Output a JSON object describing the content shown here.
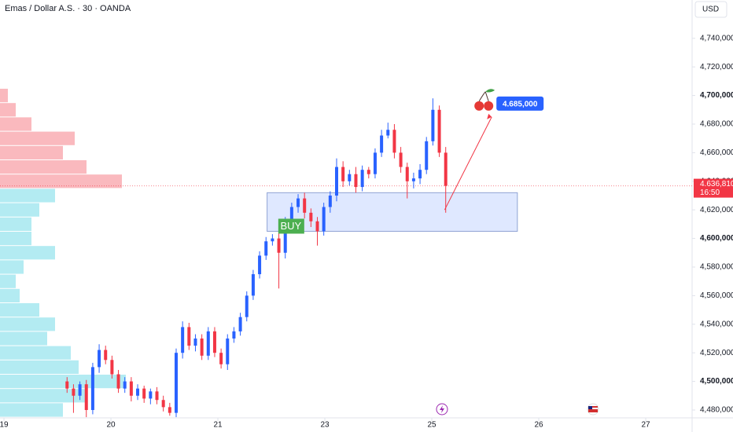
{
  "chart_data": {
    "type": "candlestick",
    "title": "Emas / Dollar A.S. · 30 · OANDA",
    "currency": "USD",
    "up_color": "#2962ff",
    "down_color": "#f23645",
    "xlim": [
      -0.037,
      6.36
    ],
    "ylim": [
      4474500,
      4766800
    ],
    "xticks": [
      {
        "value": 0,
        "label": "19"
      },
      {
        "value": 1,
        "label": "20"
      },
      {
        "value": 2,
        "label": "21"
      },
      {
        "value": 3,
        "label": "23"
      },
      {
        "value": 4,
        "label": "25"
      },
      {
        "value": 5,
        "label": "26"
      },
      {
        "value": 6,
        "label": "27"
      }
    ],
    "yticks": [
      {
        "value": 4480000,
        "label": "4,480,000"
      },
      {
        "value": 4500000,
        "label": "4,500,000"
      },
      {
        "value": 4520000,
        "label": "4,520,000"
      },
      {
        "value": 4540000,
        "label": "4,540,000"
      },
      {
        "value": 4560000,
        "label": "4,560,000"
      },
      {
        "value": 4580000,
        "label": "4,580,000"
      },
      {
        "value": 4600000,
        "label": "4,600,000"
      },
      {
        "value": 4620000,
        "label": "4,620,000"
      },
      {
        "value": 4640000,
        "label": "4,640,000"
      },
      {
        "value": 4660000,
        "label": "4,660,000"
      },
      {
        "value": 4680000,
        "label": "4,680,000"
      },
      {
        "value": 4700000,
        "label": "4,700,000"
      },
      {
        "value": 4720000,
        "label": "4,720,000"
      },
      {
        "value": 4740000,
        "label": "4,740,000"
      }
    ],
    "x": [
      0.59,
      0.65,
      0.71,
      0.77,
      0.83,
      0.89,
      0.95,
      1.01,
      1.07,
      1.13,
      1.19,
      1.25,
      1.31,
      1.37,
      1.43,
      1.49,
      1.55,
      1.61,
      1.67,
      1.73,
      1.79,
      1.85,
      1.91,
      1.97,
      2.03,
      2.09,
      2.15,
      2.21,
      2.27,
      2.33,
      2.39,
      2.45,
      2.51,
      2.57,
      2.63,
      2.69,
      2.75,
      2.81,
      2.87,
      2.93,
      2.99,
      3.05,
      3.11,
      3.17,
      3.23,
      3.29,
      3.35,
      3.41,
      3.47,
      3.53,
      3.59,
      3.65,
      3.71,
      3.77,
      3.83,
      3.89,
      3.95,
      4.01,
      4.07,
      4.13
    ],
    "open": [
      4500000,
      4495000,
      4490000,
      4498000,
      4480000,
      4510000,
      4522000,
      4515000,
      4505000,
      4495000,
      4500000,
      4490000,
      4495000,
      4488000,
      4493000,
      4487000,
      4482000,
      4478000,
      4520000,
      4538000,
      4525000,
      4530000,
      4518000,
      4535000,
      4520000,
      4512000,
      4530000,
      4535000,
      4545000,
      4560000,
      4575000,
      4588000,
      4598000,
      4600000,
      4590000,
      4612000,
      4622000,
      4628000,
      4618000,
      4612000,
      4605000,
      4622000,
      4630000,
      4650000,
      4640000,
      4645000,
      4636000,
      4648000,
      4645000,
      4660000,
      4672000,
      4676000,
      4660000,
      4650000,
      4640000,
      4642000,
      4648000,
      4668000,
      4690000,
      4660000
    ],
    "high": [
      4503000,
      4498000,
      4500000,
      4501000,
      4513000,
      4526000,
      4525000,
      4518000,
      4508000,
      4503000,
      4503000,
      4498000,
      4497000,
      4495000,
      4496000,
      4490000,
      4485000,
      4523000,
      4542000,
      4541000,
      4533000,
      4533000,
      4538000,
      4538000,
      4523000,
      4533000,
      4538000,
      4548000,
      4563000,
      4578000,
      4591000,
      4601000,
      4603000,
      4612000,
      4615000,
      4625000,
      4631000,
      4632000,
      4621000,
      4615000,
      4625000,
      4633000,
      4656000,
      4654000,
      4648000,
      4650000,
      4651000,
      4650000,
      4663000,
      4676000,
      4681000,
      4680000,
      4664000,
      4653000,
      4646000,
      4652000,
      4671000,
      4698000,
      4693000,
      4664000
    ],
    "low": [
      4492000,
      4478000,
      4487000,
      4475000,
      4477000,
      4506000,
      4512000,
      4502000,
      4492000,
      4492000,
      4486000,
      4487000,
      4485000,
      4484000,
      4484000,
      4479000,
      4476000,
      4475000,
      4516000,
      4522000,
      4521000,
      4515000,
      4515000,
      4517000,
      4509000,
      4508000,
      4527000,
      4532000,
      4542000,
      4557000,
      4572000,
      4585000,
      4595000,
      4565000,
      4586000,
      4608000,
      4618000,
      4614000,
      4608000,
      4595000,
      4602000,
      4618000,
      4626000,
      4636000,
      4637000,
      4632000,
      4633000,
      4642000,
      4642000,
      4657000,
      4670000,
      4656000,
      4646000,
      4628000,
      4635000,
      4638000,
      4645000,
      4665000,
      4657000,
      4618000
    ],
    "close": [
      4495000,
      4490000,
      4498000,
      4480000,
      4510000,
      4522000,
      4515000,
      4505000,
      4495000,
      4500000,
      4490000,
      4495000,
      4488000,
      4493000,
      4487000,
      4482000,
      4478000,
      4520000,
      4538000,
      4525000,
      4530000,
      4518000,
      4535000,
      4520000,
      4512000,
      4530000,
      4535000,
      4545000,
      4560000,
      4575000,
      4588000,
      4598000,
      4600000,
      4590000,
      4612000,
      4622000,
      4628000,
      4618000,
      4612000,
      4605000,
      4622000,
      4630000,
      4650000,
      4640000,
      4645000,
      4636000,
      4648000,
      4645000,
      4660000,
      4672000,
      4676000,
      4660000,
      4650000,
      4640000,
      4642000,
      4648000,
      4668000,
      4690000,
      4660000,
      4636810
    ],
    "volume_profile": {
      "prices": [
        4480000,
        4490000,
        4500000,
        4510000,
        4520000,
        4530000,
        4540000,
        4550000,
        4560000,
        4570000,
        4580000,
        4590000,
        4600000,
        4610000,
        4620000,
        4630000,
        4640000,
        4650000,
        4660000,
        4670000,
        4680000,
        4690000,
        4700000
      ],
      "values": [
        80,
        110,
        160,
        100,
        90,
        60,
        70,
        50,
        25,
        20,
        30,
        70,
        40,
        40,
        50,
        70,
        155,
        110,
        80,
        95,
        40,
        20,
        10
      ]
    },
    "current_price": {
      "value": 4636810,
      "label": "4.636,810",
      "time": "16:50"
    },
    "buy_zone": {
      "xlim": [
        2.46,
        4.8
      ],
      "ylim": [
        4605000,
        4632000
      ],
      "label": "BUY"
    },
    "target": {
      "x": 4.56,
      "value": 4685000,
      "label": "4.685,000",
      "from_x": 4.12,
      "from_value": 4620000
    }
  }
}
